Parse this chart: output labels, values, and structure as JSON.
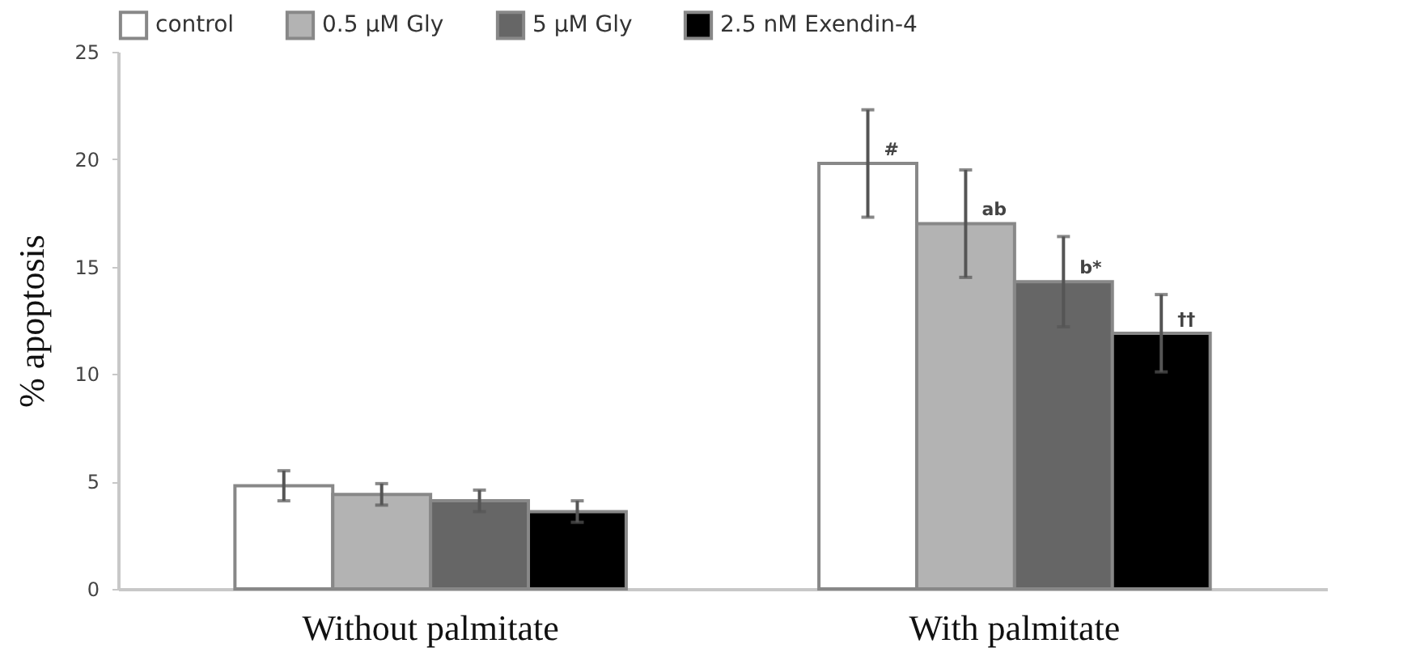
{
  "chart_data": {
    "type": "bar",
    "ylabel": "% apoptosis",
    "categories": [
      "Without palmitate",
      "With palmitate"
    ],
    "series": [
      {
        "name": "control",
        "color": "#ffffff",
        "values": [
          4.8,
          19.8
        ],
        "errors": [
          0.7,
          2.5
        ],
        "value_labels": [
          null,
          "#"
        ]
      },
      {
        "name": "0.5 μM Gly",
        "color": "#b3b3b3",
        "values": [
          4.4,
          17.0
        ],
        "errors": [
          0.5,
          2.5
        ],
        "value_labels": [
          null,
          "ab"
        ]
      },
      {
        "name": "5 μM Gly",
        "color": "#666666",
        "values": [
          4.1,
          14.3
        ],
        "errors": [
          0.5,
          2.1
        ],
        "value_labels": [
          null,
          "b*"
        ]
      },
      {
        "name": "2.5 nM Exendin-4",
        "color": "#000000",
        "values": [
          3.6,
          11.9
        ],
        "errors": [
          0.5,
          1.8
        ],
        "value_labels": [
          null,
          "††"
        ]
      }
    ],
    "ylim": [
      0,
      25
    ],
    "yticks": [
      0,
      5,
      10,
      15,
      20,
      25
    ],
    "grid": false,
    "legend": "top"
  }
}
